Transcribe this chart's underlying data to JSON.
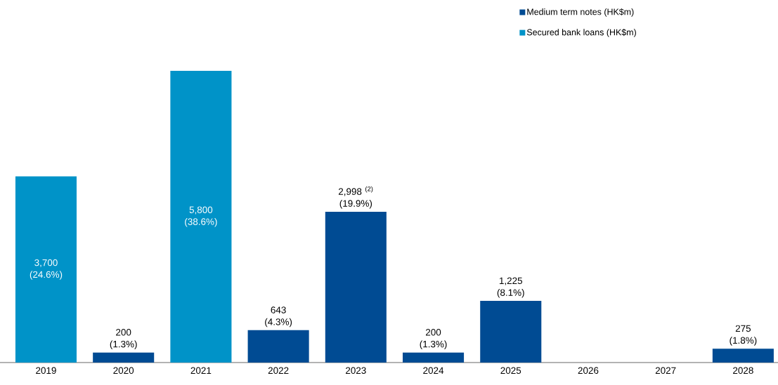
{
  "chart_data": {
    "type": "bar",
    "categories": [
      "2019",
      "2020",
      "2021",
      "2022",
      "2023",
      "2024",
      "2025",
      "2026",
      "2027",
      "2028"
    ],
    "series": [
      {
        "name": "Medium term notes (HK$m)",
        "color": "#004b93",
        "values": [
          null,
          200,
          null,
          643,
          2998,
          200,
          1225,
          null,
          null,
          275
        ],
        "value_labels": [
          null,
          "200 (1.3%)",
          null,
          "643 (4.3%)",
          "2,998 $^{(2)}$ (19.9%)",
          "200 (1.3%)",
          "1,225 (8.1%)",
          null,
          null,
          "275 (1.8%)"
        ]
      },
      {
        "name": "Secured bank loans (HK$m)",
        "color": "#0093c8",
        "values": [
          3700,
          null,
          5800,
          null,
          null,
          null,
          null,
          null,
          null,
          null
        ],
        "value_labels": [
          "3,700 (24.6%)",
          null,
          "5,800 (38.6%)",
          null,
          null,
          null,
          null,
          null,
          null,
          null
        ]
      }
    ],
    "legend": "top right"
  }
}
